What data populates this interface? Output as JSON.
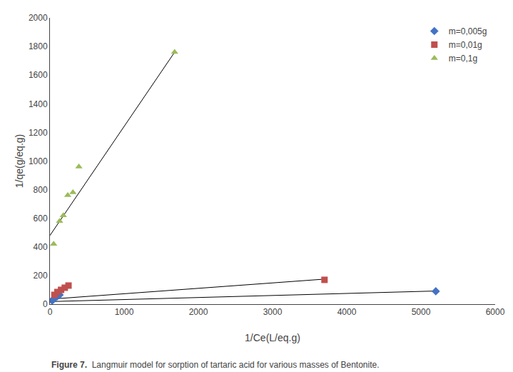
{
  "chart_data": {
    "type": "scatter",
    "annotations": [
      "Figure 7.",
      "  Langmuir model for sorption of tartaric acid for various masses of Bentonite."
    ],
    "x_label": "1/Ce(L/eq.g)",
    "y_label": "1/qe(g/eq.g)",
    "series": [
      {
        "type": "line",
        "color": "#000000",
        "x": [
          0,
          5200
        ],
        "values": [
          18,
          92
        ]
      },
      {
        "type": "line",
        "color": "#000000",
        "x": [
          0,
          3700
        ],
        "values": [
          35,
          175
        ]
      },
      {
        "type": "line",
        "color": "#000000",
        "x": [
          0,
          1680
        ],
        "values": [
          480,
          1760
        ]
      },
      {
        "name": "m=0,005g",
        "type": "scatter",
        "color": "#4472C4",
        "marker": "diamond",
        "x": [
          30,
          50,
          70,
          100,
          130,
          5200
        ],
        "values": [
          25,
          35,
          45,
          55,
          65,
          90
        ]
      },
      {
        "name": "m=0,01g",
        "type": "scatter",
        "color": "#C0504D",
        "marker": "square",
        "x": [
          60,
          100,
          150,
          200,
          250,
          3700
        ],
        "values": [
          65,
          85,
          100,
          115,
          130,
          170
        ]
      },
      {
        "name": "m=0,1g",
        "type": "scatter",
        "color": "#9BBB59",
        "marker": "triangle-up",
        "x": [
          50,
          130,
          180,
          240,
          310,
          390,
          1680
        ],
        "values": [
          420,
          580,
          620,
          760,
          780,
          960,
          1760
        ]
      }
    ],
    "xlim": [
      0,
      6000
    ],
    "ylim": [
      0,
      2000
    ],
    "xticks": [
      0,
      1000,
      2000,
      3000,
      4000,
      5000,
      6000
    ],
    "yticks": [
      0,
      200,
      400,
      600,
      800,
      1000,
      1200,
      1400,
      1600,
      1800,
      2000
    ],
    "grid": false,
    "legend": "upper right"
  }
}
